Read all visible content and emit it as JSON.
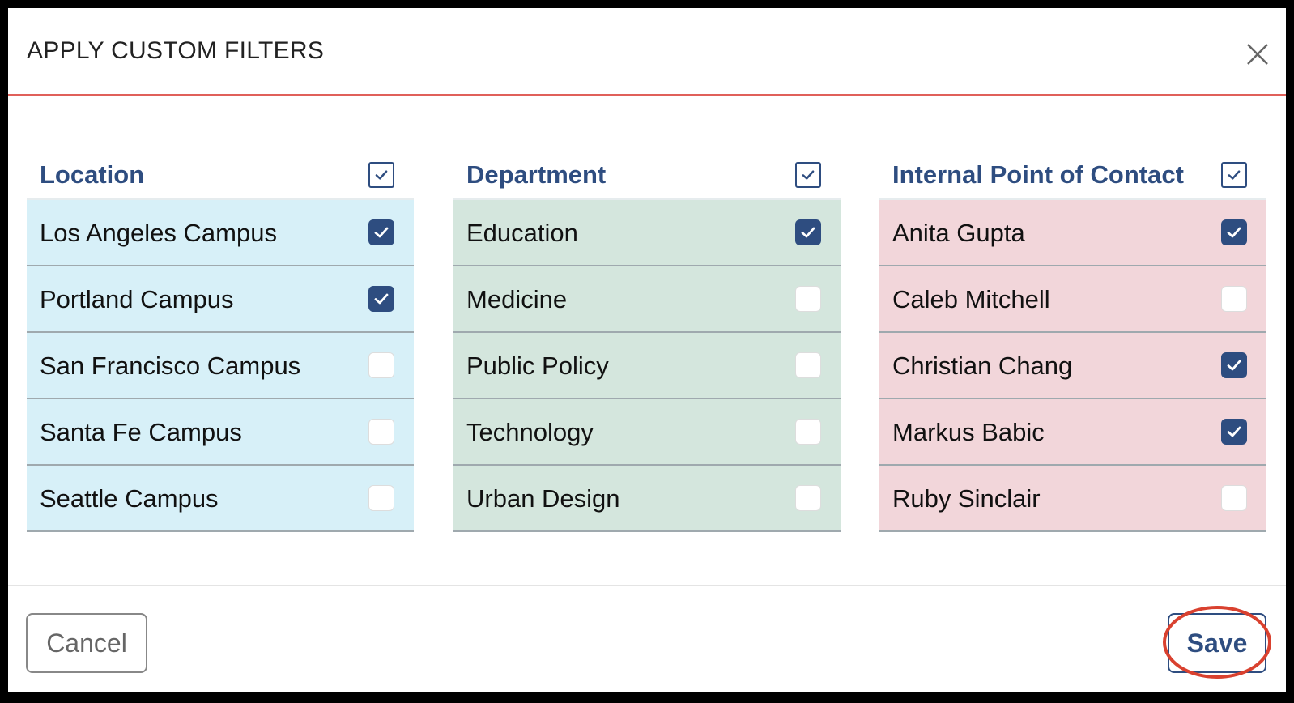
{
  "dialog": {
    "title": "APPLY CUSTOM FILTERS",
    "columns": [
      {
        "title": "Location",
        "all_checked": true,
        "color": "#d7f0f8",
        "items": [
          {
            "label": "Los Angeles Campus",
            "checked": true
          },
          {
            "label": "Portland Campus",
            "checked": true
          },
          {
            "label": "San Francisco Campus",
            "checked": false
          },
          {
            "label": "Santa Fe Campus",
            "checked": false
          },
          {
            "label": "Seattle Campus",
            "checked": false
          }
        ]
      },
      {
        "title": "Department",
        "all_checked": true,
        "color": "#d4e6dd",
        "items": [
          {
            "label": "Education",
            "checked": true
          },
          {
            "label": "Medicine",
            "checked": false
          },
          {
            "label": "Public Policy",
            "checked": false
          },
          {
            "label": "Technology",
            "checked": false
          },
          {
            "label": "Urban Design",
            "checked": false
          }
        ]
      },
      {
        "title": "Internal Point of Contact",
        "all_checked": true,
        "color": "#f2d6da",
        "items": [
          {
            "label": "Anita Gupta",
            "checked": true
          },
          {
            "label": "Caleb Mitchell",
            "checked": false
          },
          {
            "label": "Christian Chang",
            "checked": true
          },
          {
            "label": "Markus Babic",
            "checked": true
          },
          {
            "label": "Ruby Sinclair",
            "checked": false
          }
        ]
      }
    ],
    "buttons": {
      "cancel": "Cancel",
      "save": "Save"
    }
  }
}
